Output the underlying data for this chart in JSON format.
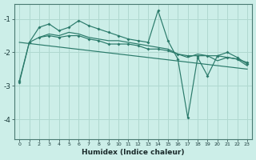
{
  "xlabel": "Humidex (Indice chaleur)",
  "bg_color": "#cceee8",
  "grid_color": "#b0d8d0",
  "line_color": "#2a7a6a",
  "xlim": [
    -0.5,
    23.5
  ],
  "ylim": [
    -4.6,
    -0.55
  ],
  "yticks": [
    -4,
    -3,
    -2,
    -1
  ],
  "xticks": [
    0,
    1,
    2,
    3,
    4,
    5,
    6,
    7,
    8,
    9,
    10,
    11,
    12,
    13,
    14,
    15,
    16,
    17,
    18,
    19,
    20,
    21,
    22,
    23
  ],
  "line1_x": [
    0,
    1,
    2,
    3,
    4,
    5,
    6,
    7,
    8,
    9,
    10,
    11,
    12,
    13,
    14,
    15,
    16,
    17,
    18,
    19,
    20,
    21,
    22,
    23
  ],
  "line1_y": [
    -2.9,
    -1.7,
    -1.25,
    -1.15,
    -1.35,
    -1.25,
    -1.05,
    -1.2,
    -1.3,
    -1.4,
    -1.5,
    -1.6,
    -1.65,
    -1.7,
    -0.75,
    -1.65,
    -2.2,
    -3.95,
    -2.15,
    -2.7,
    -2.1,
    -2.0,
    -2.15,
    -2.35
  ],
  "line2_x": [
    0,
    1,
    2,
    3,
    4,
    5,
    6,
    7,
    8,
    9,
    10,
    11,
    12,
    13,
    14,
    15,
    16,
    17,
    18,
    19,
    20,
    21,
    22,
    23
  ],
  "line2_y": [
    -2.85,
    -1.7,
    -1.55,
    -1.5,
    -1.55,
    -1.5,
    -1.5,
    -1.6,
    -1.65,
    -1.75,
    -1.75,
    -1.75,
    -1.8,
    -1.9,
    -1.9,
    -1.95,
    -2.05,
    -2.1,
    -2.1,
    -2.1,
    -2.1,
    -2.15,
    -2.2,
    -2.3
  ],
  "line3_x": [
    0,
    23
  ],
  "line3_y": [
    -1.7,
    -2.5
  ],
  "line4_x": [
    2,
    3,
    4,
    5,
    6,
    7,
    8,
    9,
    10,
    11,
    12,
    13,
    14,
    15,
    16,
    17,
    18,
    19,
    20,
    21,
    22,
    23
  ],
  "line4_y": [
    -1.55,
    -1.45,
    -1.5,
    -1.4,
    -1.45,
    -1.55,
    -1.6,
    -1.65,
    -1.65,
    -1.7,
    -1.75,
    -1.8,
    -1.85,
    -1.9,
    -2.05,
    -2.15,
    -2.05,
    -2.1,
    -2.25,
    -2.15,
    -2.2,
    -2.4
  ]
}
